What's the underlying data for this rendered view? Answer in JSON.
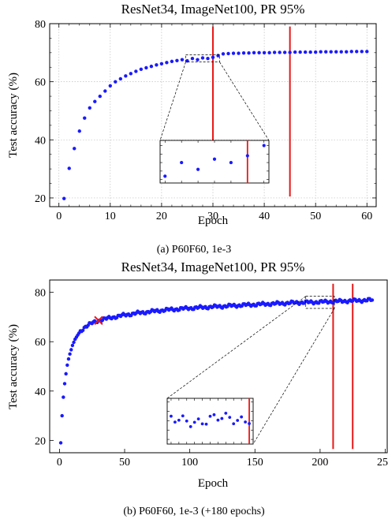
{
  "chart_data": [
    {
      "type": "scatter",
      "title": "ResNet34, ImageNet100, PR 95%",
      "xlabel": "Epoch",
      "ylabel": "Test accuracy (%)",
      "xlim": [
        -1.8,
        61.8
      ],
      "ylim": [
        17,
        80
      ],
      "xticks": [
        0,
        10,
        20,
        30,
        40,
        50,
        60
      ],
      "yticks": [
        20,
        40,
        60,
        80
      ],
      "grid": true,
      "caption": "(a) P60F60, 1e-3",
      "marker_color": "#1a1aff",
      "vline_color": "#e81818",
      "vlines": [
        30,
        45
      ],
      "inset": {
        "xlim": [
          24.7,
          31.3
        ],
        "ylim": [
          66.8,
          69.3
        ]
      },
      "series": [
        {
          "x": [
            1,
            2,
            3,
            4,
            5,
            6,
            7,
            8,
            9,
            10,
            11,
            12,
            13,
            14,
            15,
            16,
            17,
            18,
            19,
            20,
            21,
            22,
            23,
            24,
            25,
            26,
            27,
            28,
            29,
            30,
            31,
            32,
            33,
            34,
            35,
            36,
            37,
            38,
            39,
            40,
            41,
            42,
            43,
            44,
            45,
            46,
            47,
            48,
            49,
            50,
            51,
            52,
            53,
            54,
            55,
            56,
            57,
            58,
            59,
            60
          ],
          "y": [
            19.8,
            30.2,
            37.0,
            43.0,
            47.5,
            51.0,
            53.2,
            55.0,
            56.8,
            58.6,
            60.0,
            61.0,
            62.0,
            62.8,
            63.6,
            64.3,
            64.8,
            65.3,
            65.8,
            66.2,
            66.6,
            67.0,
            67.3,
            67.6,
            67.2,
            68.0,
            67.6,
            68.2,
            68.0,
            68.4,
            69.0,
            69.6,
            69.7,
            69.8,
            69.8,
            69.9,
            69.9,
            70.0,
            70.0,
            70.0,
            70.0,
            70.1,
            70.1,
            70.1,
            70.1,
            70.2,
            70.2,
            70.2,
            70.2,
            70.2,
            70.3,
            70.3,
            70.3,
            70.3,
            70.3,
            70.3,
            70.4,
            70.4,
            70.4,
            70.4
          ]
        }
      ]
    },
    {
      "type": "scatter",
      "title": "ResNet34, ImageNet100, PR 95%",
      "xlabel": "Epoch",
      "ylabel": "Test accuracy (%)",
      "xlim": [
        -7.5,
        251.5
      ],
      "ylim": [
        15,
        85
      ],
      "xticks": [
        0,
        50,
        100,
        150,
        200,
        250
      ],
      "yticks": [
        20,
        40,
        60,
        80
      ],
      "grid": false,
      "caption": "(b) P60F60, 1e-3 (+180 epochs)",
      "marker_color": "#1a1aff",
      "vline_color": "#e81818",
      "vlines": [
        210,
        225
      ],
      "cross": {
        "x": 30,
        "y": 68.6
      },
      "inset": {
        "xlim": [
          189,
          211
        ],
        "ylim": [
          73.5,
          78.4
        ]
      },
      "series": [
        {
          "curve": {
            "x": [
              1,
              2,
              3,
              4,
              5,
              6,
              7,
              8,
              10,
              12,
              15,
              18,
              20,
              25,
              30,
              40,
              50,
              60,
              80,
              100,
              120,
              140,
              160,
              180,
              200,
              210,
              220,
              230,
              240
            ],
            "y": [
              19.0,
              30.0,
              37.5,
              43.0,
              47.0,
              50.5,
              53.0,
              55.0,
              58.5,
              61.0,
              63.5,
              65.2,
              66.2,
              67.5,
              68.6,
              69.8,
              70.8,
              71.6,
              72.8,
              73.6,
              74.2,
              74.8,
              75.3,
              75.8,
              76.1,
              76.3,
              76.5,
              76.7,
              76.9
            ]
          },
          "x_range": [
            1,
            240
          ]
        }
      ]
    }
  ]
}
